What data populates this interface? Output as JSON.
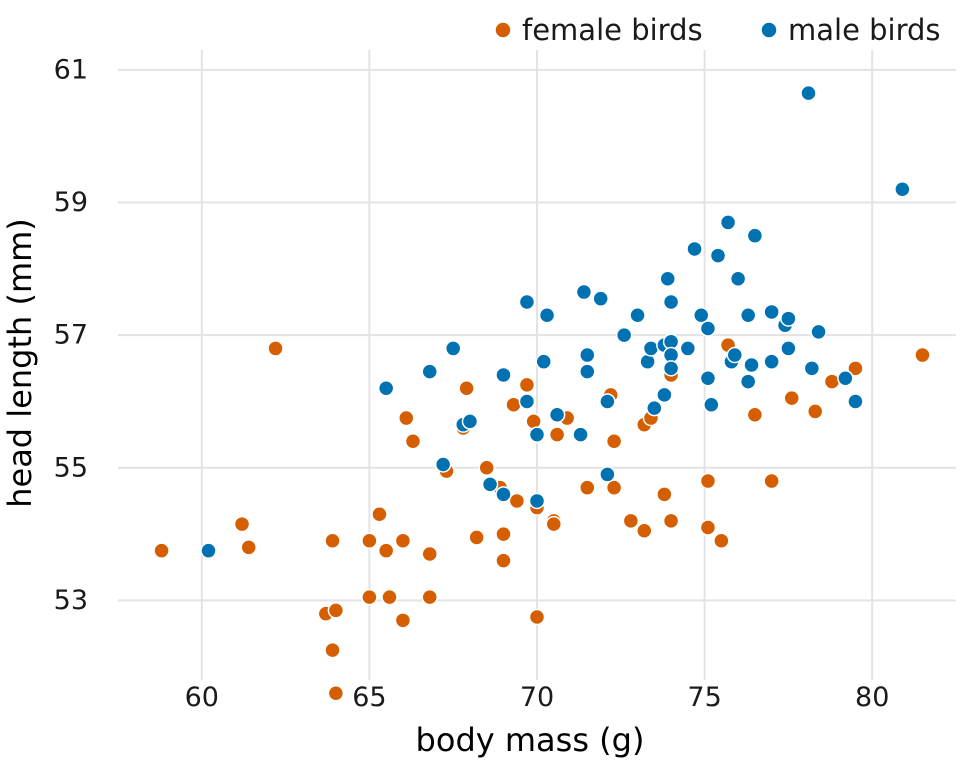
{
  "chart_data": {
    "type": "scatter",
    "title": "",
    "xlabel": "body mass (g)",
    "ylabel": "head length (mm)",
    "xlim": [
      57.5,
      82.5
    ],
    "ylim": [
      51.8,
      61.3
    ],
    "xticks": [
      60,
      65,
      70,
      75,
      80
    ],
    "yticks": [
      53,
      55,
      57,
      59,
      61
    ],
    "grid": true,
    "legend_position": "top-right",
    "series": [
      {
        "name": "female birds",
        "color": "#D55E00",
        "points": [
          [
            58.8,
            53.75
          ],
          [
            61.2,
            54.15
          ],
          [
            61.4,
            53.8
          ],
          [
            62.2,
            56.8
          ],
          [
            63.7,
            52.8
          ],
          [
            63.9,
            53.9
          ],
          [
            63.9,
            52.25
          ],
          [
            64.0,
            51.6
          ],
          [
            64.0,
            52.85
          ],
          [
            65.0,
            53.9
          ],
          [
            65.0,
            53.05
          ],
          [
            65.3,
            54.3
          ],
          [
            65.5,
            53.75
          ],
          [
            65.6,
            53.05
          ],
          [
            66.0,
            53.9
          ],
          [
            66.0,
            52.7
          ],
          [
            66.1,
            55.75
          ],
          [
            66.3,
            55.4
          ],
          [
            66.8,
            53.7
          ],
          [
            66.8,
            53.05
          ],
          [
            67.3,
            54.95
          ],
          [
            67.8,
            55.6
          ],
          [
            67.9,
            56.2
          ],
          [
            68.2,
            53.95
          ],
          [
            68.5,
            55.0
          ],
          [
            68.9,
            54.7
          ],
          [
            69.0,
            54.0
          ],
          [
            69.0,
            53.6
          ],
          [
            69.4,
            54.5
          ],
          [
            69.3,
            55.95
          ],
          [
            69.7,
            56.25
          ],
          [
            69.9,
            55.7
          ],
          [
            70.0,
            54.4
          ],
          [
            70.0,
            52.75
          ],
          [
            70.5,
            54.2
          ],
          [
            70.5,
            54.15
          ],
          [
            70.6,
            55.5
          ],
          [
            70.9,
            55.75
          ],
          [
            71.5,
            54.7
          ],
          [
            72.2,
            56.1
          ],
          [
            72.3,
            55.4
          ],
          [
            72.3,
            54.7
          ],
          [
            72.8,
            54.2
          ],
          [
            73.2,
            55.65
          ],
          [
            73.2,
            54.05
          ],
          [
            73.4,
            55.75
          ],
          [
            73.8,
            54.6
          ],
          [
            74.0,
            56.4
          ],
          [
            74.0,
            54.2
          ],
          [
            75.1,
            54.8
          ],
          [
            75.1,
            54.1
          ],
          [
            75.5,
            53.9
          ],
          [
            75.7,
            56.85
          ],
          [
            76.5,
            55.8
          ],
          [
            77.0,
            54.8
          ],
          [
            77.6,
            56.05
          ],
          [
            78.3,
            55.85
          ],
          [
            78.8,
            56.3
          ],
          [
            79.5,
            56.5
          ],
          [
            81.5,
            56.7
          ]
        ]
      },
      {
        "name": "male birds",
        "color": "#0072B2",
        "points": [
          [
            60.2,
            53.75
          ],
          [
            65.5,
            56.2
          ],
          [
            66.8,
            56.45
          ],
          [
            67.2,
            55.05
          ],
          [
            67.5,
            56.8
          ],
          [
            67.8,
            55.65
          ],
          [
            68.0,
            55.7
          ],
          [
            68.6,
            54.75
          ],
          [
            69.0,
            54.6
          ],
          [
            69.0,
            56.4
          ],
          [
            69.7,
            57.5
          ],
          [
            69.7,
            56.0
          ],
          [
            70.0,
            55.5
          ],
          [
            70.0,
            54.5
          ],
          [
            70.2,
            56.6
          ],
          [
            70.3,
            57.3
          ],
          [
            70.6,
            55.8
          ],
          [
            71.3,
            55.5
          ],
          [
            71.4,
            57.65
          ],
          [
            71.5,
            56.45
          ],
          [
            71.5,
            56.7
          ],
          [
            71.9,
            57.55
          ],
          [
            72.1,
            56.0
          ],
          [
            72.1,
            54.9
          ],
          [
            72.6,
            57.0
          ],
          [
            73.0,
            57.3
          ],
          [
            73.3,
            56.6
          ],
          [
            73.4,
            56.8
          ],
          [
            73.5,
            55.9
          ],
          [
            73.8,
            56.1
          ],
          [
            73.8,
            56.85
          ],
          [
            73.9,
            57.85
          ],
          [
            74.0,
            56.9
          ],
          [
            74.0,
            56.7
          ],
          [
            74.0,
            56.5
          ],
          [
            74.0,
            57.5
          ],
          [
            74.5,
            56.8
          ],
          [
            74.7,
            58.3
          ],
          [
            74.9,
            57.3
          ],
          [
            75.1,
            57.1
          ],
          [
            75.1,
            56.35
          ],
          [
            75.2,
            55.95
          ],
          [
            75.4,
            58.2
          ],
          [
            75.7,
            58.7
          ],
          [
            75.8,
            56.6
          ],
          [
            75.9,
            56.7
          ],
          [
            76.0,
            57.85
          ],
          [
            76.3,
            57.3
          ],
          [
            76.3,
            56.3
          ],
          [
            76.4,
            56.55
          ],
          [
            76.5,
            58.5
          ],
          [
            77.0,
            57.35
          ],
          [
            77.0,
            56.6
          ],
          [
            77.4,
            57.15
          ],
          [
            77.5,
            57.25
          ],
          [
            77.5,
            56.8
          ],
          [
            78.1,
            60.65
          ],
          [
            78.2,
            56.5
          ],
          [
            78.4,
            57.05
          ],
          [
            79.2,
            56.35
          ],
          [
            79.5,
            56.0
          ],
          [
            80.9,
            59.2
          ]
        ]
      }
    ]
  }
}
